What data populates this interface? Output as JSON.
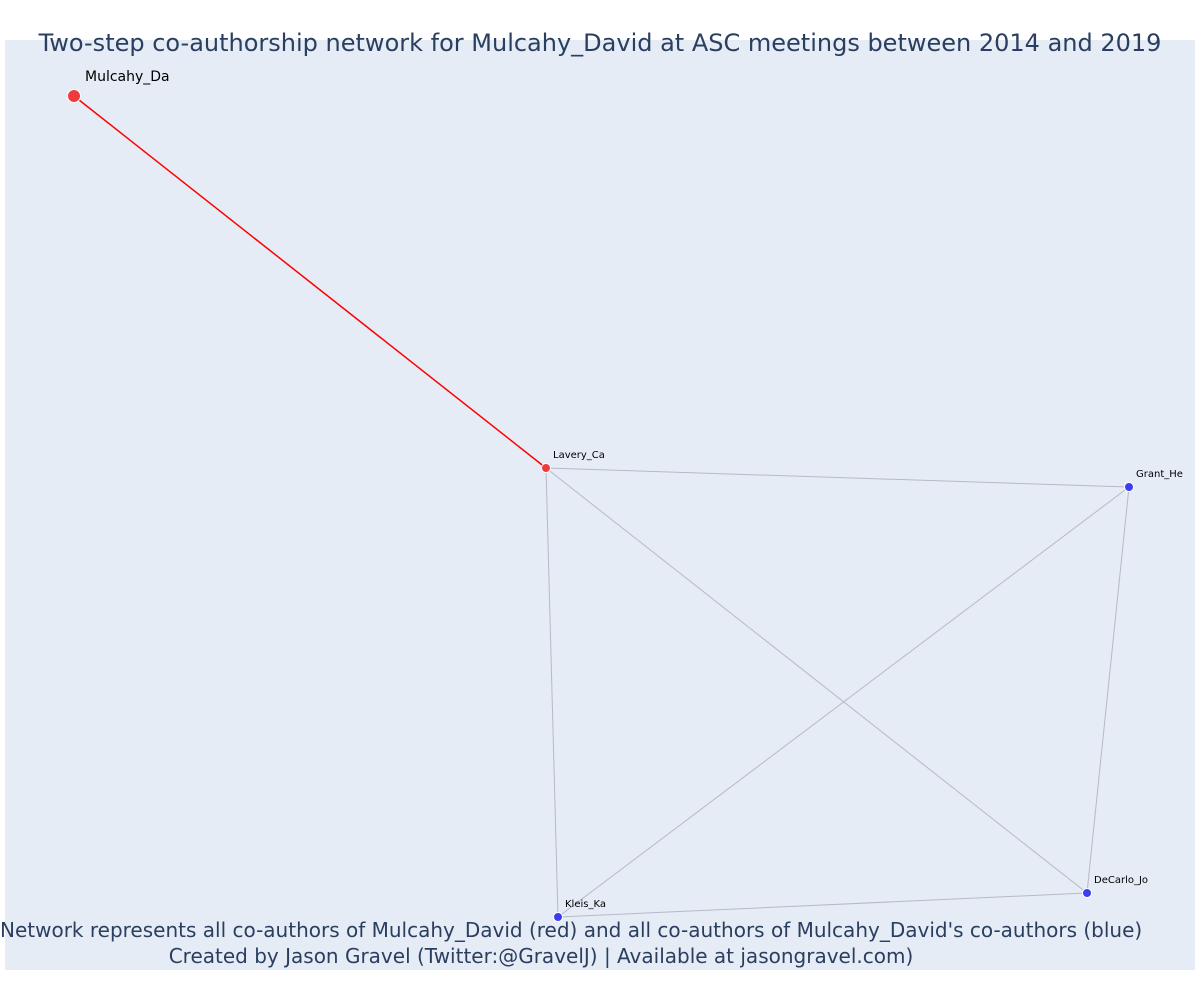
{
  "title": "Two-step co-authorship network for Mulcahy_David at ASC meetings between 2014 and 2019",
  "captions": {
    "line1": "Network represents all co-authors of Mulcahy_David (red) and all co-authors of Mulcahy_David's co-authors (blue)",
    "line2": "Created by Jason Gravel (Twitter:@GravelJ) | Available at jasongravel.com)"
  },
  "colors": {
    "focal": "#ef3b3b",
    "coauthor": "#ef3b3b",
    "second_step": "#3c3cf0",
    "edge_focal": "#ff0000",
    "edge_other": "#b8b8c8",
    "background": "#e5ecf6",
    "text": "#2a3f5f"
  },
  "nodes": [
    {
      "id": "Mulcahy_Da",
      "label": "Mulcahy_Da",
      "group": "focal"
    },
    {
      "id": "Lavery_Ca",
      "label": "Lavery_Ca",
      "group": "coauthor"
    },
    {
      "id": "Grant_He",
      "label": "Grant_He",
      "group": "second_step"
    },
    {
      "id": "DeCarlo_Jo",
      "label": "DeCarlo_Jo",
      "group": "second_step"
    },
    {
      "id": "Kleis_Ka",
      "label": "Kleis_Ka",
      "group": "second_step"
    }
  ],
  "edges": [
    {
      "source": "Mulcahy_Da",
      "target": "Lavery_Ca",
      "type": "focal"
    },
    {
      "source": "Lavery_Ca",
      "target": "Grant_He",
      "type": "other"
    },
    {
      "source": "Lavery_Ca",
      "target": "Kleis_Ka",
      "type": "other"
    },
    {
      "source": "Lavery_Ca",
      "target": "DeCarlo_Jo",
      "type": "other"
    },
    {
      "source": "Grant_He",
      "target": "Kleis_Ka",
      "type": "other"
    },
    {
      "source": "Grant_He",
      "target": "DeCarlo_Jo",
      "type": "other"
    },
    {
      "source": "Kleis_Ka",
      "target": "DeCarlo_Jo",
      "type": "other"
    }
  ]
}
